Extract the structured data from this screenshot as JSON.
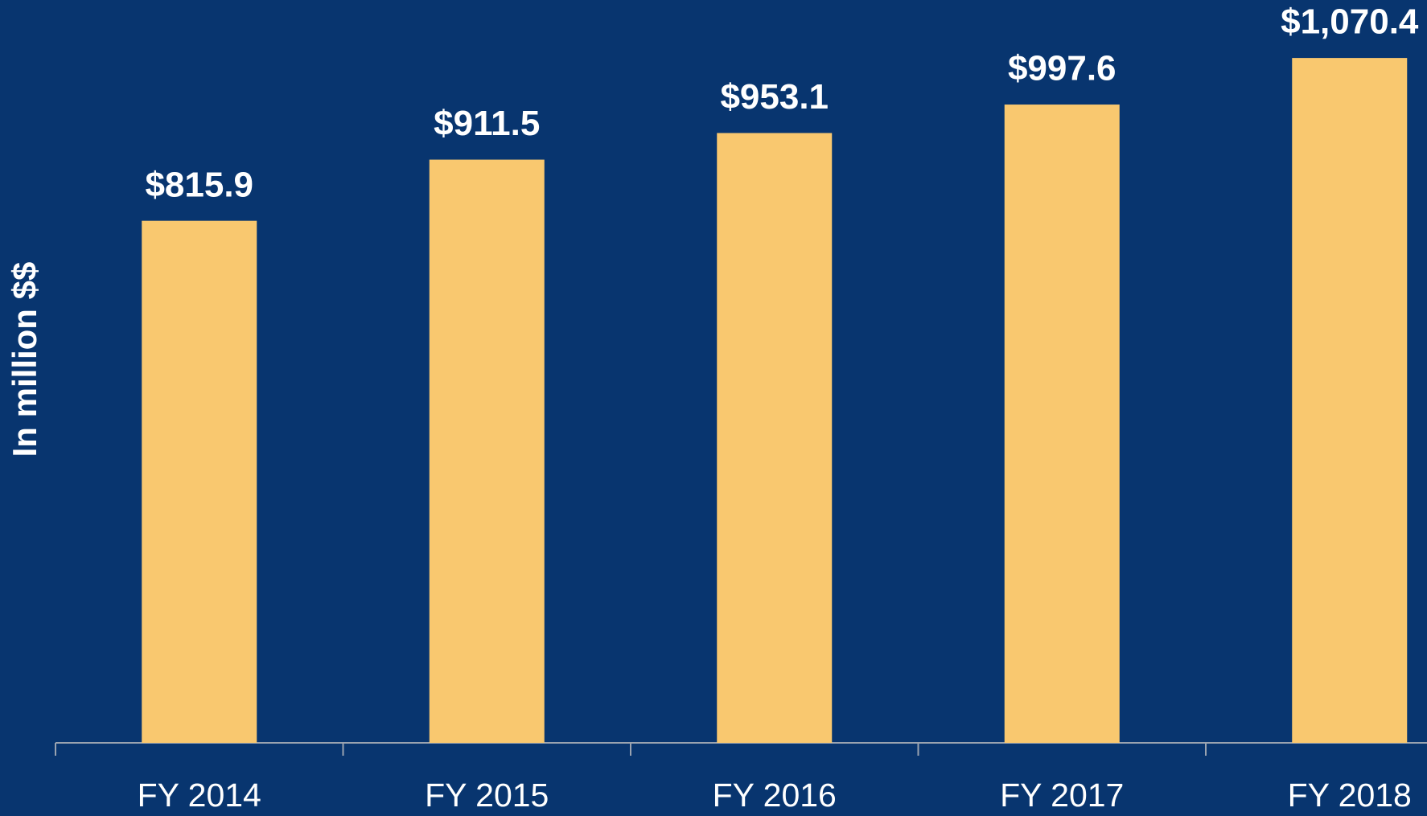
{
  "chart_data": {
    "type": "bar",
    "y_label": "In million $$",
    "categories": [
      "FY 2014",
      "FY 2015",
      "FY 2016",
      "FY 2017",
      "FY 2018"
    ],
    "values": [
      815.9,
      911.5,
      953.1,
      997.6,
      1070.4
    ],
    "value_labels": [
      "$815.9",
      "$911.5",
      "$953.1",
      "$997.6",
      "$1,070.4"
    ],
    "color": "#f9c86f",
    "ylim": [
      0,
      1161
    ]
  }
}
